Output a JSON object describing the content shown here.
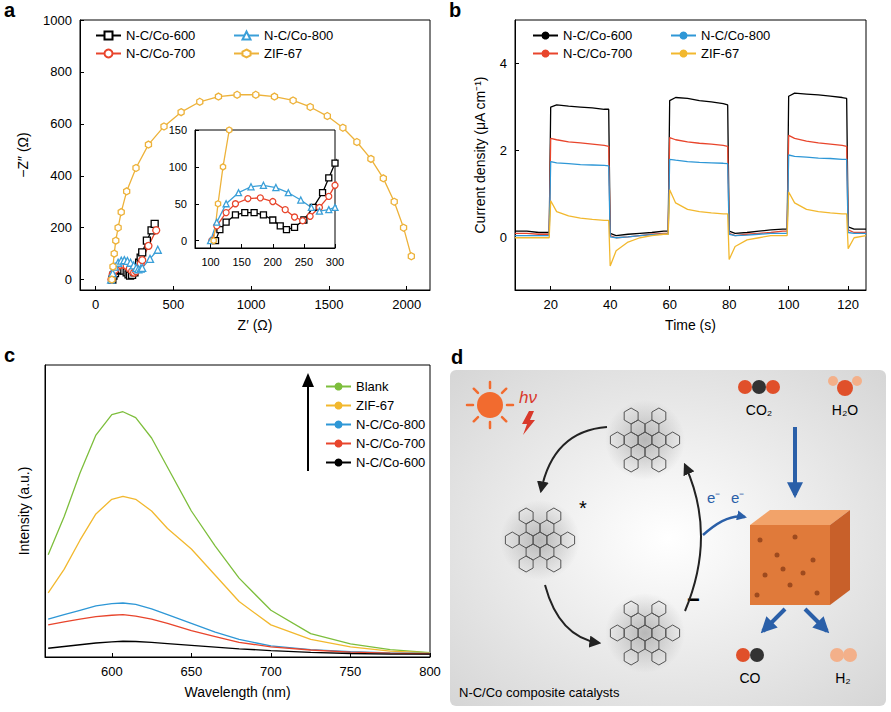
{
  "chart_data": [
    {
      "panel": "a",
      "type": "line",
      "xlabel": "Z′ (Ω)",
      "ylabel": "−Z″ (Ω)",
      "xlim": [
        -100,
        2150
      ],
      "xticks": [
        0,
        500,
        1000,
        1500,
        2000
      ],
      "ylim": [
        -40,
        1000
      ],
      "yticks": [
        0,
        200,
        400,
        600,
        800,
        1000
      ],
      "legend": "upper left",
      "series": [
        {
          "name": "N-C/Co-600",
          "color": "#000000",
          "marker": "square",
          "x": [
            108,
            115,
            125,
            140,
            155,
            170,
            185,
            200,
            212,
            222,
            235,
            250,
            265,
            280,
            290,
            300,
            330,
            360,
            380
          ],
          "values": [
            0,
            15,
            25,
            35,
            38,
            38,
            35,
            28,
            20,
            15,
            18,
            28,
            45,
            65,
            85,
            105,
            150,
            190,
            215
          ]
        },
        {
          "name": "N-C/Co-700",
          "color": "#E8452C",
          "marker": "circle",
          "x": [
            102,
            110,
            125,
            140,
            160,
            180,
            200,
            220,
            235,
            248,
            260,
            275,
            290,
            300,
            340,
            390
          ],
          "values": [
            0,
            20,
            38,
            50,
            57,
            58,
            53,
            42,
            32,
            27,
            33,
            45,
            60,
            75,
            130,
            190
          ]
        },
        {
          "name": "N-C/Co-800",
          "color": "#3A9FD8",
          "marker": "triangle",
          "x": [
            100,
            110,
            125,
            145,
            165,
            185,
            205,
            225,
            245,
            262,
            275,
            290,
            300,
            350,
            400
          ],
          "values": [
            0,
            25,
            50,
            65,
            73,
            75,
            72,
            65,
            55,
            45,
            40,
            42,
            45,
            80,
            115
          ]
        },
        {
          "name": "ZIF-67",
          "color": "#EDB23A",
          "marker": "hexagon",
          "x": [
            105,
            112,
            120,
            130,
            145,
            165,
            200,
            260,
            340,
            440,
            550,
            670,
            790,
            910,
            1030,
            1150,
            1270,
            1380,
            1490,
            1590,
            1680,
            1770,
            1850,
            1920,
            1980,
            2030
          ],
          "values": [
            0,
            50,
            100,
            150,
            200,
            260,
            340,
            430,
            520,
            590,
            645,
            685,
            705,
            712,
            712,
            705,
            690,
            665,
            630,
            585,
            530,
            465,
            390,
            300,
            200,
            90
          ]
        }
      ],
      "inset": {
        "xlim": [
          75,
          300
        ],
        "xticks": [
          100,
          150,
          200,
          250,
          300
        ],
        "ylim": [
          -10,
          150
        ],
        "yticks": [
          0,
          50,
          100,
          150
        ]
      }
    },
    {
      "panel": "b",
      "type": "line",
      "xlabel": "Time (s)",
      "ylabel": "Current density (μA cm⁻¹)",
      "xlim": [
        8,
        126
      ],
      "xticks": [
        20,
        40,
        60,
        80,
        100,
        120
      ],
      "ylim": [
        -1.2,
        5
      ],
      "yticks": [
        0,
        2,
        4
      ],
      "legend": "upper left",
      "x": [
        8,
        12,
        16,
        19.5,
        20,
        22,
        26,
        30,
        34,
        38,
        39.5,
        40,
        42,
        46,
        50,
        54,
        58,
        59.5,
        60,
        62,
        66,
        70,
        74,
        78,
        79.5,
        80,
        82,
        86,
        90,
        94,
        98,
        99.5,
        100,
        102,
        106,
        110,
        114,
        118,
        119.5,
        120,
        122,
        126
      ],
      "series": [
        {
          "name": "N-C/Co-600",
          "color": "#000000",
          "values": [
            0.15,
            0.15,
            0.12,
            0.12,
            3.0,
            3.05,
            3.02,
            3.0,
            2.98,
            2.95,
            2.95,
            0.1,
            0.05,
            0.08,
            0.1,
            0.12,
            0.15,
            0.15,
            3.15,
            3.22,
            3.2,
            3.15,
            3.12,
            3.08,
            3.05,
            0.15,
            0.1,
            0.12,
            0.15,
            0.18,
            0.2,
            0.2,
            3.25,
            3.32,
            3.3,
            3.28,
            3.25,
            3.22,
            3.2,
            0.25,
            0.2,
            0.2
          ]
        },
        {
          "name": "N-C/Co-700",
          "color": "#E8452C",
          "values": [
            0.1,
            0.1,
            0.08,
            0.08,
            2.28,
            2.25,
            2.2,
            2.18,
            2.15,
            2.12,
            2.1,
            0.05,
            0.0,
            0.02,
            0.05,
            0.08,
            0.1,
            0.1,
            2.3,
            2.25,
            2.2,
            2.17,
            2.15,
            2.12,
            2.1,
            0.1,
            0.05,
            0.08,
            0.1,
            0.12,
            0.15,
            0.15,
            2.35,
            2.28,
            2.22,
            2.18,
            2.15,
            2.12,
            2.1,
            0.18,
            0.12,
            0.12
          ]
        },
        {
          "name": "N-C/Co-800",
          "color": "#2E97D6",
          "values": [
            0.05,
            0.05,
            0.05,
            0.05,
            1.75,
            1.72,
            1.7,
            1.68,
            1.67,
            1.66,
            1.65,
            0.02,
            0.0,
            0.02,
            0.05,
            0.07,
            0.08,
            0.08,
            1.8,
            1.78,
            1.75,
            1.73,
            1.72,
            1.71,
            1.7,
            0.08,
            0.05,
            0.06,
            0.08,
            0.1,
            0.1,
            0.1,
            1.9,
            1.87,
            1.85,
            1.83,
            1.82,
            1.8,
            1.8,
            0.12,
            0.1,
            0.1
          ]
        },
        {
          "name": "ZIF-67",
          "color": "#F2B82E",
          "values": [
            0.0,
            0.0,
            0.0,
            0.0,
            0.85,
            0.6,
            0.5,
            0.45,
            0.42,
            0.4,
            0.4,
            -0.65,
            -0.3,
            -0.1,
            0.0,
            0.05,
            0.08,
            0.08,
            1.1,
            0.8,
            0.65,
            0.6,
            0.57,
            0.55,
            0.55,
            -0.5,
            -0.2,
            -0.05,
            0.0,
            0.05,
            0.05,
            0.05,
            1.05,
            0.8,
            0.65,
            0.6,
            0.57,
            0.55,
            0.55,
            -0.25,
            0.0,
            0.05
          ]
        }
      ]
    },
    {
      "panel": "c",
      "type": "line",
      "xlabel": "Wavelength (nm)",
      "ylabel": "Intensity (a.u.)",
      "xlim": [
        558,
        800
      ],
      "xticks": [
        600,
        650,
        700,
        750,
        800
      ],
      "ylim": [
        0,
        100
      ],
      "tick_labels": "x",
      "legend": "upper right",
      "x": [
        560,
        570,
        580,
        590,
        600,
        607,
        615,
        625,
        635,
        650,
        665,
        680,
        700,
        725,
        750,
        775,
        800
      ],
      "series": [
        {
          "name": "Blank",
          "color": "#7DBE3C",
          "values": [
            35,
            48,
            63,
            76,
            83,
            84,
            82,
            75,
            65,
            50,
            38,
            27,
            16,
            8,
            4.5,
            2.5,
            1.5
          ]
        },
        {
          "name": "ZIF-67",
          "color": "#F2B82E",
          "values": [
            22,
            30,
            40,
            49,
            54,
            55,
            54,
            50,
            44,
            37,
            28,
            19,
            11,
            6,
            3.5,
            2,
            1.4
          ]
        },
        {
          "name": "N-C/Co-800",
          "color": "#2E97D6",
          "values": [
            13,
            14.5,
            16,
            17.5,
            18.3,
            18.5,
            18,
            16.5,
            14.5,
            11.5,
            8.5,
            6,
            3.8,
            2.5,
            1.8,
            1.4,
            1.2
          ]
        },
        {
          "name": "N-C/Co-700",
          "color": "#E8452C",
          "values": [
            11,
            12,
            13,
            13.8,
            14.3,
            14.5,
            14,
            13,
            11.5,
            9,
            7,
            5,
            3.5,
            2.4,
            1.7,
            1.3,
            1.1
          ]
        },
        {
          "name": "N-C/Co-600",
          "color": "#000000",
          "values": [
            3,
            3.6,
            4.2,
            4.8,
            5.2,
            5.4,
            5.3,
            5,
            4.6,
            4,
            3.4,
            2.8,
            2.2,
            1.6,
            1.2,
            1,
            1
          ]
        }
      ]
    }
  ],
  "diagram": {
    "panel": "d",
    "light": "hν",
    "excited": "*",
    "reduced": "−",
    "electrons": [
      "e⁻",
      "e⁻"
    ],
    "reactants": [
      "CO₂",
      "H₂O"
    ],
    "products": [
      "CO",
      "H₂"
    ],
    "caption": "N-C/Co composite catalysts"
  }
}
